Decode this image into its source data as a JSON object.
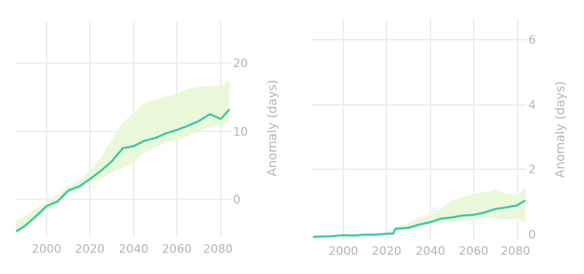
{
  "colors": {
    "line": "#3cc8a6",
    "band": "#e9f8d9",
    "grid": "#ececec",
    "text": "#b4b4b4"
  },
  "chart_data": [
    {
      "type": "line",
      "title": "",
      "xlabel": "",
      "ylabel": "Anomaly (days)",
      "xlim": [
        1985.5,
        2084.7
      ],
      "ylim": [
        -5.4,
        26
      ],
      "x_ticks": [
        "2000",
        "2020",
        "2040",
        "2060",
        "2080"
      ],
      "y_ticks": [
        "0",
        "10",
        "20"
      ],
      "grid": true,
      "legend": "none",
      "x": [
        1986,
        1990,
        1995,
        2000,
        2005,
        2010,
        2015,
        2020,
        2025,
        2030,
        2035,
        2040,
        2045,
        2050,
        2055,
        2060,
        2065,
        2070,
        2075,
        2080,
        2084
      ],
      "series": [
        {
          "name": "median",
          "values": [
            -4.7,
            -3.9,
            -2.5,
            -1.0,
            -0.3,
            1.3,
            1.9,
            3.0,
            4.2,
            5.6,
            7.5,
            7.8,
            8.6,
            9.0,
            9.7,
            10.2,
            10.8,
            11.5,
            12.5,
            11.8,
            13.2
          ]
        },
        {
          "name": "upper",
          "values": [
            -3.0,
            -2.6,
            -1.4,
            -0.3,
            0.6,
            1.9,
            2.7,
            4.2,
            6.2,
            8.8,
            11.3,
            12.6,
            14.2,
            14.6,
            15.1,
            15.5,
            16.2,
            16.5,
            16.7,
            16.6,
            17.5
          ]
        },
        {
          "name": "lower",
          "values": [
            -5.0,
            -4.3,
            -3.0,
            -1.6,
            -0.7,
            0.9,
            1.4,
            2.5,
            3.0,
            4.0,
            4.6,
            5.4,
            6.9,
            7.6,
            8.4,
            8.8,
            9.3,
            10.0,
            10.6,
            10.8,
            11.3
          ]
        }
      ]
    },
    {
      "type": "line",
      "title": "",
      "xlabel": "",
      "ylabel": "Anomaly (days)",
      "xlim": [
        1985.5,
        2084.5
      ],
      "ylim": [
        -0.05,
        6.7
      ],
      "x_ticks": [
        "2000",
        "2020",
        "2040",
        "2060",
        "2080"
      ],
      "y_ticks": [
        "0",
        "2",
        "4",
        "6"
      ],
      "grid": true,
      "legend": "none",
      "x": [
        1986,
        1990,
        1995,
        2000,
        2005,
        2010,
        2015,
        2020,
        2023,
        2024,
        2030,
        2035,
        2040,
        2045,
        2050,
        2055,
        2060,
        2065,
        2070,
        2075,
        2080,
        2084
      ],
      "series": [
        {
          "name": "median",
          "values": [
            -0.08,
            -0.07,
            -0.06,
            -0.03,
            -0.04,
            -0.01,
            -0.01,
            0.02,
            0.02,
            0.17,
            0.2,
            0.3,
            0.37,
            0.48,
            0.52,
            0.58,
            0.6,
            0.67,
            0.78,
            0.83,
            0.89,
            1.05
          ]
        },
        {
          "name": "upper",
          "values": [
            -0.05,
            -0.05,
            -0.04,
            -0.01,
            -0.01,
            0.01,
            0.02,
            0.05,
            0.18,
            0.22,
            0.35,
            0.5,
            0.6,
            0.8,
            1.05,
            1.15,
            1.25,
            1.3,
            1.38,
            1.25,
            1.2,
            1.45
          ]
        },
        {
          "name": "lower",
          "values": [
            -0.12,
            -0.1,
            -0.09,
            -0.06,
            -0.06,
            -0.04,
            -0.04,
            -0.01,
            0.0,
            0.1,
            0.15,
            0.22,
            0.3,
            0.35,
            0.4,
            0.42,
            0.45,
            0.52,
            0.48,
            0.46,
            0.48,
            0.38
          ]
        }
      ]
    }
  ],
  "left": {
    "y_axis_title": "Anomaly (days)",
    "x_ticks": [
      "2000",
      "2020",
      "2040",
      "2060",
      "2080"
    ],
    "y_ticks": [
      "0",
      "10",
      "20"
    ]
  },
  "right": {
    "y_axis_title": "Anomaly (days)",
    "x_ticks": [
      "2000",
      "2020",
      "2040",
      "2060",
      "2080"
    ],
    "y_ticks": [
      "0",
      "2",
      "4",
      "6"
    ]
  }
}
